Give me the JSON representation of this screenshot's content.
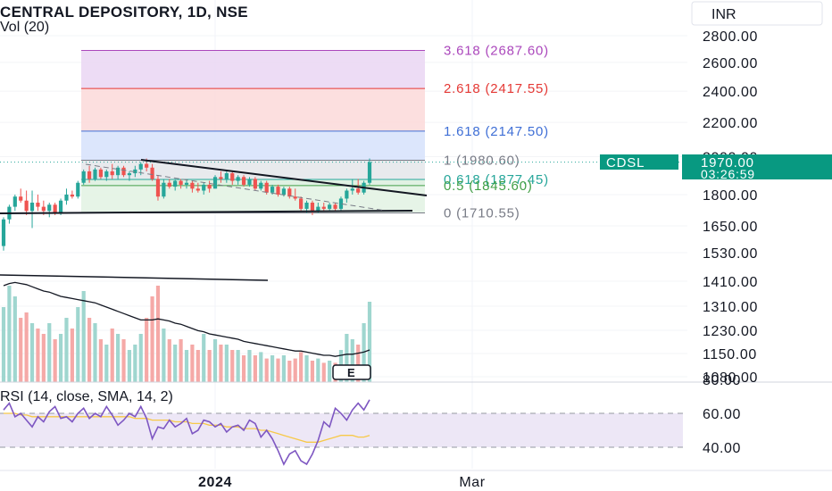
{
  "header": {
    "title": "CENTRAL DEPOSITORY, 1D, NSE",
    "volume_label": "Vol (20)",
    "currency_button": "INR"
  },
  "price_badge": {
    "symbol": "CDSL",
    "price": "1970.00",
    "countdown": "03:26:59"
  },
  "rsi_label": "RSI (14, close, SMA, 14, 2)",
  "earnings_marker": "E",
  "colors": {
    "up": "#26a69a",
    "down": "#ef5350",
    "badge": "#089981",
    "rsi_line": "#7e57c2",
    "rsi_sma": "#f7c948",
    "rsi_band": "#ede7f6"
  },
  "chart_data": [
    {
      "type": "candlestick",
      "title": "CENTRAL DEPOSITORY, 1D, NSE",
      "y_ticks": [
        1080,
        1150,
        1230,
        1310,
        1410,
        1530,
        1650,
        1800,
        2000,
        2200,
        2400,
        2600,
        2800
      ],
      "y_tick_labels": [
        "1080.00",
        "1150.00",
        "1230.00",
        "1310.00",
        "1410.00",
        "1530.00",
        "1650.00",
        "1800.00",
        "2000.00",
        "2200.00",
        "2400.00",
        "2600.00",
        "2800.00"
      ],
      "scale": "log",
      "ylim": [
        1040,
        2900
      ],
      "x_tick_labels": [
        "2024",
        "Mar"
      ],
      "last_price": 1970.0,
      "fibonacci_levels": [
        {
          "ratio": "3.618",
          "price": 2687.6,
          "label": "3.618 (2687.60)",
          "color": "#ab47bc",
          "fill": "#ead6f3"
        },
        {
          "ratio": "2.618",
          "price": 2417.55,
          "label": "2.618 (2417.55)",
          "color": "#e53935",
          "fill": "#fcd9d9"
        },
        {
          "ratio": "1.618",
          "price": 2147.5,
          "label": "1.618 (2147.50)",
          "color": "#3f6fd6",
          "fill": "#d6e2fb"
        },
        {
          "ratio": "1",
          "price": 1980.6,
          "label": "1 (1980.60)",
          "color": "#787b86",
          "fill": "#e4e6ea"
        },
        {
          "ratio": "0.618",
          "price": 1877.45,
          "label": "0.618 (1877.45)",
          "color": "#26a69a",
          "fill": "#dbeede"
        },
        {
          "ratio": "0.5",
          "price": 1845.6,
          "label": "0.5 (1845.60)",
          "color": "#43a047",
          "fill": "#e2f2e3"
        },
        {
          "ratio": "0",
          "price": 1710.55,
          "label": "0 (1710.55)",
          "color": "#787b86",
          "fill": "#e2f2e3"
        }
      ],
      "candles": [
        {
          "o": 1560,
          "h": 1690,
          "l": 1540,
          "c": 1680
        },
        {
          "o": 1680,
          "h": 1750,
          "l": 1660,
          "c": 1740
        },
        {
          "o": 1740,
          "h": 1800,
          "l": 1720,
          "c": 1790
        },
        {
          "o": 1790,
          "h": 1830,
          "l": 1760,
          "c": 1770
        },
        {
          "o": 1770,
          "h": 1820,
          "l": 1700,
          "c": 1720
        },
        {
          "o": 1720,
          "h": 1820,
          "l": 1640,
          "c": 1760
        },
        {
          "o": 1760,
          "h": 1800,
          "l": 1720,
          "c": 1740
        },
        {
          "o": 1740,
          "h": 1770,
          "l": 1700,
          "c": 1720
        },
        {
          "o": 1720,
          "h": 1760,
          "l": 1690,
          "c": 1750
        },
        {
          "o": 1750,
          "h": 1760,
          "l": 1700,
          "c": 1710
        },
        {
          "o": 1710,
          "h": 1780,
          "l": 1700,
          "c": 1770
        },
        {
          "o": 1770,
          "h": 1830,
          "l": 1750,
          "c": 1800
        },
        {
          "o": 1800,
          "h": 1820,
          "l": 1780,
          "c": 1790
        },
        {
          "o": 1790,
          "h": 1870,
          "l": 1780,
          "c": 1860
        },
        {
          "o": 1860,
          "h": 1930,
          "l": 1850,
          "c": 1920
        },
        {
          "o": 1920,
          "h": 1950,
          "l": 1860,
          "c": 1880
        },
        {
          "o": 1880,
          "h": 1940,
          "l": 1870,
          "c": 1930
        },
        {
          "o": 1930,
          "h": 1940,
          "l": 1880,
          "c": 1890
        },
        {
          "o": 1890,
          "h": 1930,
          "l": 1870,
          "c": 1920
        },
        {
          "o": 1920,
          "h": 1960,
          "l": 1880,
          "c": 1900
        },
        {
          "o": 1900,
          "h": 1950,
          "l": 1880,
          "c": 1940
        },
        {
          "o": 1940,
          "h": 1950,
          "l": 1890,
          "c": 1900
        },
        {
          "o": 1900,
          "h": 1920,
          "l": 1870,
          "c": 1910
        },
        {
          "o": 1910,
          "h": 1950,
          "l": 1890,
          "c": 1930
        },
        {
          "o": 1930,
          "h": 1970,
          "l": 1900,
          "c": 1960
        },
        {
          "o": 1960,
          "h": 1990,
          "l": 1920,
          "c": 1940
        },
        {
          "o": 1940,
          "h": 1960,
          "l": 1870,
          "c": 1880
        },
        {
          "o": 1880,
          "h": 1900,
          "l": 1770,
          "c": 1790
        },
        {
          "o": 1790,
          "h": 1880,
          "l": 1780,
          "c": 1860
        },
        {
          "o": 1860,
          "h": 1880,
          "l": 1830,
          "c": 1840
        },
        {
          "o": 1840,
          "h": 1880,
          "l": 1820,
          "c": 1870
        },
        {
          "o": 1870,
          "h": 1880,
          "l": 1830,
          "c": 1850
        },
        {
          "o": 1850,
          "h": 1880,
          "l": 1830,
          "c": 1860
        },
        {
          "o": 1860,
          "h": 1870,
          "l": 1810,
          "c": 1830
        },
        {
          "o": 1830,
          "h": 1860,
          "l": 1810,
          "c": 1820
        },
        {
          "o": 1820,
          "h": 1860,
          "l": 1800,
          "c": 1850
        },
        {
          "o": 1850,
          "h": 1870,
          "l": 1810,
          "c": 1830
        },
        {
          "o": 1830,
          "h": 1900,
          "l": 1830,
          "c": 1890
        },
        {
          "o": 1890,
          "h": 1920,
          "l": 1860,
          "c": 1880
        },
        {
          "o": 1880,
          "h": 1920,
          "l": 1860,
          "c": 1910
        },
        {
          "o": 1910,
          "h": 1920,
          "l": 1850,
          "c": 1870
        },
        {
          "o": 1870,
          "h": 1900,
          "l": 1850,
          "c": 1890
        },
        {
          "o": 1890,
          "h": 1900,
          "l": 1840,
          "c": 1850
        },
        {
          "o": 1850,
          "h": 1890,
          "l": 1840,
          "c": 1880
        },
        {
          "o": 1880,
          "h": 1890,
          "l": 1820,
          "c": 1830
        },
        {
          "o": 1830,
          "h": 1870,
          "l": 1820,
          "c": 1860
        },
        {
          "o": 1860,
          "h": 1870,
          "l": 1800,
          "c": 1810
        },
        {
          "o": 1810,
          "h": 1850,
          "l": 1800,
          "c": 1840
        },
        {
          "o": 1840,
          "h": 1850,
          "l": 1790,
          "c": 1800
        },
        {
          "o": 1800,
          "h": 1840,
          "l": 1790,
          "c": 1830
        },
        {
          "o": 1830,
          "h": 1840,
          "l": 1780,
          "c": 1790
        },
        {
          "o": 1790,
          "h": 1830,
          "l": 1770,
          "c": 1780
        },
        {
          "o": 1780,
          "h": 1790,
          "l": 1720,
          "c": 1730
        },
        {
          "o": 1730,
          "h": 1770,
          "l": 1710,
          "c": 1760
        },
        {
          "o": 1760,
          "h": 1770,
          "l": 1700,
          "c": 1720
        },
        {
          "o": 1720,
          "h": 1760,
          "l": 1710,
          "c": 1740
        },
        {
          "o": 1740,
          "h": 1760,
          "l": 1720,
          "c": 1730
        },
        {
          "o": 1730,
          "h": 1760,
          "l": 1720,
          "c": 1750
        },
        {
          "o": 1750,
          "h": 1760,
          "l": 1720,
          "c": 1730
        },
        {
          "o": 1730,
          "h": 1790,
          "l": 1720,
          "c": 1780
        },
        {
          "o": 1780,
          "h": 1830,
          "l": 1760,
          "c": 1820
        },
        {
          "o": 1820,
          "h": 1880,
          "l": 1800,
          "c": 1830
        },
        {
          "o": 1830,
          "h": 1880,
          "l": 1800,
          "c": 1810
        },
        {
          "o": 1810,
          "h": 1870,
          "l": 1800,
          "c": 1860
        },
        {
          "o": 1860,
          "h": 1990,
          "l": 1850,
          "c": 1970
        }
      ],
      "volume": [
        70,
        90,
        80,
        60,
        65,
        55,
        50,
        45,
        55,
        40,
        45,
        60,
        50,
        70,
        85,
        60,
        55,
        40,
        35,
        50,
        45,
        40,
        30,
        35,
        45,
        60,
        80,
        90,
        50,
        40,
        35,
        40,
        30,
        35,
        30,
        45,
        30,
        40,
        35,
        35,
        30,
        30,
        25,
        30,
        25,
        28,
        22,
        25,
        22,
        25,
        20,
        22,
        28,
        25,
        20,
        22,
        18,
        20,
        18,
        30,
        45,
        40,
        35,
        55,
        75
      ],
      "volume_sma": [
        90,
        92,
        93,
        92,
        91,
        89,
        87,
        85,
        84,
        82,
        80,
        79,
        78,
        77,
        76,
        75,
        74,
        72,
        70,
        68,
        66,
        64,
        62,
        60,
        58,
        58,
        58,
        59,
        58,
        57,
        55,
        54,
        52,
        50,
        48,
        47,
        45,
        44,
        43,
        42,
        41,
        40,
        38,
        37,
        36,
        35,
        34,
        33,
        32,
        31,
        30,
        29,
        29,
        28,
        27,
        26,
        25,
        25,
        24,
        25,
        26,
        26,
        27,
        28,
        30
      ],
      "rsi": [
        62,
        66,
        58,
        60,
        56,
        52,
        58,
        55,
        61,
        64,
        57,
        58,
        55,
        60,
        63,
        57,
        60,
        58,
        64,
        59,
        53,
        56,
        60,
        58,
        64,
        57,
        45,
        52,
        51,
        56,
        52,
        54,
        57,
        48,
        50,
        56,
        55,
        52,
        54,
        49,
        52,
        53,
        50,
        56,
        54,
        46,
        50,
        45,
        38,
        30,
        36,
        38,
        32,
        30,
        36,
        44,
        55,
        52,
        63,
        60,
        56,
        62,
        66,
        62,
        68
      ],
      "rsi_sma": [
        60,
        60,
        60,
        59,
        59,
        58,
        58,
        58,
        58,
        58,
        58,
        58,
        58,
        58,
        58,
        58,
        58,
        58,
        58,
        58,
        58,
        58,
        58,
        57,
        57,
        57,
        56,
        56,
        56,
        56,
        55,
        55,
        55,
        54,
        54,
        54,
        53,
        53,
        53,
        52,
        52,
        52,
        51,
        51,
        51,
        50,
        50,
        49,
        48,
        47,
        46,
        45,
        44,
        43,
        43,
        43,
        44,
        45,
        46,
        47,
        47,
        47,
        46,
        46,
        47
      ],
      "rsi_ticks": [
        "80.00",
        "60.00",
        "40.00"
      ],
      "rsi_band": [
        40,
        60
      ]
    }
  ]
}
